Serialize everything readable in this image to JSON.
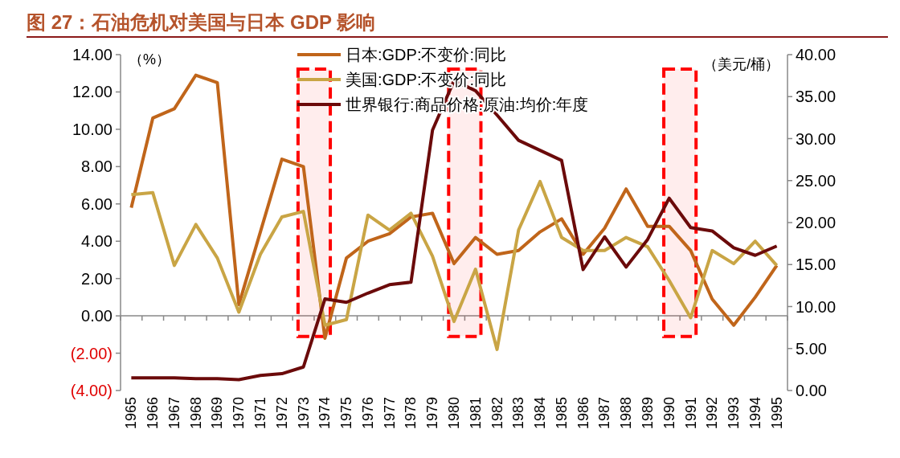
{
  "chart_data": {
    "type": "line",
    "title": "图 27：石油危机对美国与日本 GDP 影响",
    "ylabel": "（%）",
    "y2label": "（美元/桶）",
    "categories": [
      "1965",
      "1966",
      "1967",
      "1968",
      "1969",
      "1970",
      "1971",
      "1972",
      "1973",
      "1974",
      "1975",
      "1976",
      "1977",
      "1978",
      "1979",
      "1980",
      "1981",
      "1982",
      "1983",
      "1984",
      "1985",
      "1986",
      "1987",
      "1988",
      "1989",
      "1990",
      "1991",
      "1992",
      "1993",
      "1994",
      "1995"
    ],
    "series": [
      {
        "name": "日本:GDP:不变价:同比",
        "color": "#c0651a",
        "values": [
          5.8,
          10.6,
          11.1,
          12.9,
          12.5,
          0.6,
          4.5,
          8.4,
          8.0,
          -1.2,
          3.1,
          4.0,
          4.4,
          5.3,
          5.5,
          2.8,
          4.2,
          3.3,
          3.5,
          4.5,
          5.2,
          3.3,
          4.7,
          6.8,
          4.8,
          4.8,
          3.5,
          0.9,
          -0.5,
          1.0,
          2.7
        ]
      },
      {
        "name": "美国:GDP:不变价:同比",
        "color": "#c9a545",
        "values": [
          6.5,
          6.6,
          2.7,
          4.9,
          3.1,
          0.2,
          3.3,
          5.3,
          5.6,
          -0.5,
          -0.2,
          5.4,
          4.6,
          5.5,
          3.2,
          -0.3,
          2.5,
          -1.8,
          4.6,
          7.2,
          4.2,
          3.5,
          3.5,
          4.2,
          3.7,
          1.9,
          -0.1,
          3.5,
          2.8,
          4.0,
          2.7
        ]
      },
      {
        "name": "世界银行:商品价格:原油:均价:年度",
        "color": "#6b0a0a",
        "axis": "y2",
        "values": [
          1.5,
          1.5,
          1.5,
          1.4,
          1.4,
          1.3,
          1.8,
          2.0,
          2.8,
          10.9,
          10.5,
          11.6,
          12.6,
          12.9,
          31.0,
          36.9,
          35.7,
          32.8,
          29.8,
          28.6,
          27.4,
          14.4,
          18.3,
          14.7,
          18.0,
          22.9,
          19.4,
          19.0,
          17.0,
          16.1,
          17.2
        ]
      }
    ],
    "ylim": [
      -4,
      14
    ],
    "yticks": [
      {
        "value": -4,
        "label": "(4.00)"
      },
      {
        "value": -2,
        "label": "(2.00)"
      },
      {
        "value": 0,
        "label": "0.00"
      },
      {
        "value": 2,
        "label": "2.00"
      },
      {
        "value": 4,
        "label": "4.00"
      },
      {
        "value": 6,
        "label": "6.00"
      },
      {
        "value": 8,
        "label": "8.00"
      },
      {
        "value": 10,
        "label": "10.00"
      },
      {
        "value": 12,
        "label": "12.00"
      },
      {
        "value": 14,
        "label": "14.00"
      }
    ],
    "y2lim": [
      0,
      40
    ],
    "y2ticks": [
      {
        "value": 0,
        "label": "0.00"
      },
      {
        "value": 5,
        "label": "5.00"
      },
      {
        "value": 10,
        "label": "10.00"
      },
      {
        "value": 15,
        "label": "15.00"
      },
      {
        "value": 20,
        "label": "20.00"
      },
      {
        "value": 25,
        "label": "25.00"
      },
      {
        "value": 30,
        "label": "30.00"
      },
      {
        "value": 35,
        "label": "35.00"
      },
      {
        "value": 40,
        "label": "40.00"
      }
    ],
    "bands": [
      {
        "axis": "x",
        "from": "1973",
        "to": "1974",
        "color": "#ff0000"
      },
      {
        "axis": "x",
        "from": "1980",
        "to": "1981",
        "color": "#ff0000"
      },
      {
        "axis": "x",
        "from": "1990",
        "to": "1991",
        "color": "#ff0000"
      }
    ],
    "legend": "top",
    "marker": "none",
    "line_style": "solid"
  }
}
